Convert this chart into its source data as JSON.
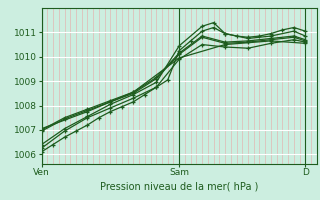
{
  "bg_color": "#cceee0",
  "grid_color_v": "#e8a8a8",
  "grid_color_h": "#ffffff",
  "line_color": "#1e5c1e",
  "marker": "+",
  "ylabel_values": [
    1006,
    1007,
    1008,
    1009,
    1010,
    1011
  ],
  "ylim": [
    1005.6,
    1012.0
  ],
  "xlim": [
    0,
    48
  ],
  "xtick_positions": [
    0,
    24,
    46
  ],
  "xtick_labels": [
    "Ven",
    "Sam",
    "D"
  ],
  "xlabel": "Pression niveau de la mer( hPa )",
  "vgrid_step": 1,
  "series": [
    [
      0,
      1006.1,
      2,
      1006.4,
      4,
      1006.7,
      6,
      1006.95,
      8,
      1007.2,
      10,
      1007.5,
      12,
      1007.75,
      14,
      1007.95,
      16,
      1008.15,
      18,
      1008.45,
      20,
      1008.75,
      22,
      1009.05,
      24,
      1010.25,
      26,
      1010.65,
      28,
      1011.05,
      30,
      1011.2,
      32,
      1010.95,
      34,
      1010.85,
      36,
      1010.8,
      38,
      1010.85,
      40,
      1010.95,
      42,
      1011.1,
      44,
      1011.2,
      46,
      1011.05
    ],
    [
      0,
      1006.4,
      4,
      1007.05,
      8,
      1007.55,
      12,
      1008.05,
      16,
      1008.45,
      20,
      1008.95,
      24,
      1010.45,
      28,
      1011.25,
      30,
      1011.4,
      32,
      1010.95,
      36,
      1010.75,
      40,
      1010.85,
      44,
      1011.05,
      46,
      1010.85
    ],
    [
      0,
      1006.95,
      4,
      1007.45,
      8,
      1007.8,
      12,
      1008.15,
      16,
      1008.5,
      20,
      1009.1,
      24,
      1010.1,
      28,
      1010.8,
      32,
      1010.55,
      36,
      1010.6,
      40,
      1010.7,
      44,
      1010.8,
      46,
      1010.65
    ],
    [
      0,
      1007.0,
      4,
      1007.5,
      8,
      1007.85,
      12,
      1008.2,
      16,
      1008.55,
      20,
      1009.15,
      24,
      1010.15,
      28,
      1010.85,
      32,
      1010.6,
      36,
      1010.65,
      40,
      1010.75,
      44,
      1010.85,
      46,
      1010.7
    ],
    [
      0,
      1006.25,
      4,
      1006.95,
      8,
      1007.5,
      12,
      1007.9,
      16,
      1008.3,
      20,
      1008.75,
      24,
      1009.9,
      28,
      1010.5,
      32,
      1010.4,
      36,
      1010.35,
      40,
      1010.55,
      44,
      1010.7,
      46,
      1010.6
    ],
    [
      0,
      1007.05,
      8,
      1007.75,
      16,
      1008.55,
      24,
      1009.95,
      32,
      1010.5,
      40,
      1010.65,
      46,
      1010.55
    ]
  ]
}
